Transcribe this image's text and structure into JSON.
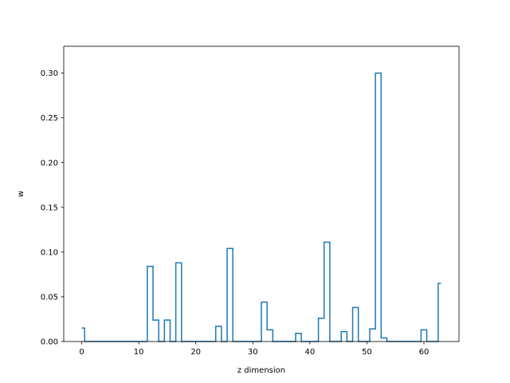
{
  "chart_data": {
    "type": "line",
    "drawstyle": "steps-mid",
    "xlabel": "z dimension",
    "ylabel": "w",
    "xlim": [
      -3.15,
      66.15
    ],
    "ylim": [
      0,
      0.33
    ],
    "xticks": [
      0,
      10,
      20,
      30,
      40,
      50,
      60
    ],
    "yticks": [
      0.0,
      0.05,
      0.1,
      0.15,
      0.2,
      0.25,
      0.3
    ],
    "xtick_labels": [
      "0",
      "10",
      "20",
      "30",
      "40",
      "50",
      "60"
    ],
    "ytick_labels": [
      "0.00",
      "0.05",
      "0.10",
      "0.15",
      "0.20",
      "0.25",
      "0.30"
    ],
    "grid": false,
    "line_color": "#1f77b4",
    "series": [
      {
        "x": [
          0,
          1,
          2,
          3,
          4,
          5,
          6,
          7,
          8,
          9,
          10,
          11,
          12,
          13,
          14,
          15,
          16,
          17,
          18,
          19,
          20,
          21,
          22,
          23,
          24,
          25,
          26,
          27,
          28,
          29,
          30,
          31,
          32,
          33,
          34,
          35,
          36,
          37,
          38,
          39,
          40,
          41,
          42,
          43,
          44,
          45,
          46,
          47,
          48,
          49,
          50,
          51,
          52,
          53,
          54,
          55,
          56,
          57,
          58,
          59,
          60,
          61,
          62,
          63
        ],
        "values": [
          0.015,
          0,
          0,
          0,
          0,
          0,
          0,
          0,
          0,
          0,
          0,
          0,
          0.084,
          0.024,
          0,
          0.024,
          0,
          0.088,
          0,
          0,
          0,
          0,
          0,
          0,
          0.017,
          0,
          0.104,
          0,
          0,
          0,
          0,
          0,
          0.044,
          0.013,
          0,
          0,
          0,
          0,
          0.009,
          0,
          0,
          0,
          0.026,
          0.111,
          0,
          0,
          0.011,
          0,
          0.038,
          0,
          0,
          0.014,
          0.3,
          0.004,
          0,
          0,
          0,
          0,
          0,
          0,
          0.013,
          0,
          0,
          0.065
        ]
      }
    ]
  }
}
